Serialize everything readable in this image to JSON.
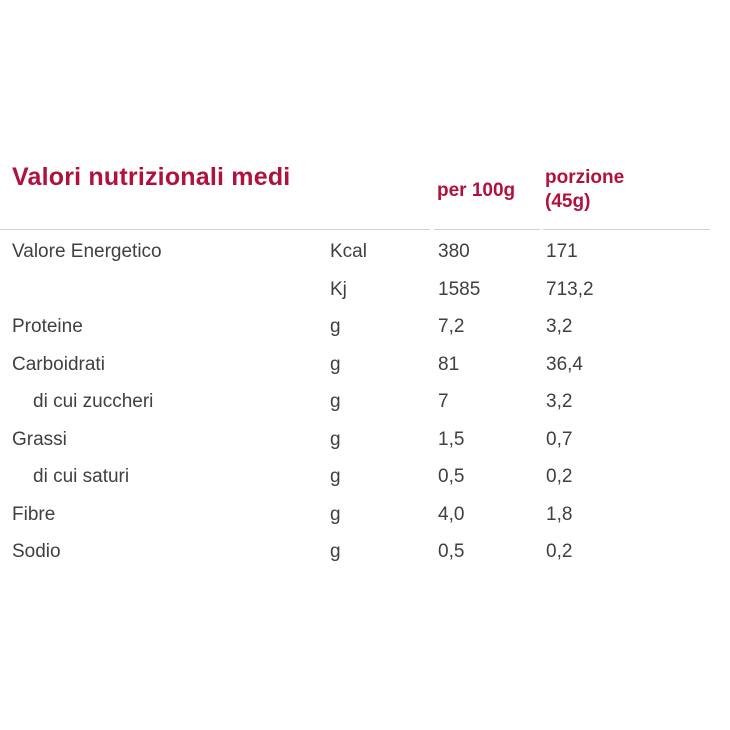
{
  "table": {
    "title": "Valori nutrizionali medi",
    "col_per100": "per 100g",
    "col_portion_line1": "porzione",
    "col_portion_line2": "(45g)",
    "rows": [
      {
        "name": "Valore Energetico",
        "unit": "Kcal",
        "per100": "380",
        "portion": "171"
      },
      {
        "name": "",
        "unit": "Kj",
        "per100": "1585",
        "portion": "713,2"
      },
      {
        "name": "Proteine",
        "unit": "g",
        "per100": "7,2",
        "portion": "3,2"
      },
      {
        "name": "Carboidrati",
        "unit": "g",
        "per100": "81",
        "portion": "36,4"
      },
      {
        "name": "di cui zuccheri",
        "unit": "g",
        "per100": "7",
        "portion": "3,2"
      },
      {
        "name": "Grassi",
        "unit": "g",
        "per100": "1,5",
        "portion": "0,7"
      },
      {
        "name": "di cui saturi",
        "unit": "g",
        "per100": "0,5",
        "portion": "0,2"
      },
      {
        "name": "Fibre",
        "unit": "g",
        "per100": "4,0",
        "portion": "1,8"
      },
      {
        "name": "Sodio",
        "unit": "g",
        "per100": "0,5",
        "portion": "0,2"
      }
    ]
  },
  "colors": {
    "accent": "#b0123d",
    "text": "#404040",
    "rule": "#d0d0d0"
  }
}
